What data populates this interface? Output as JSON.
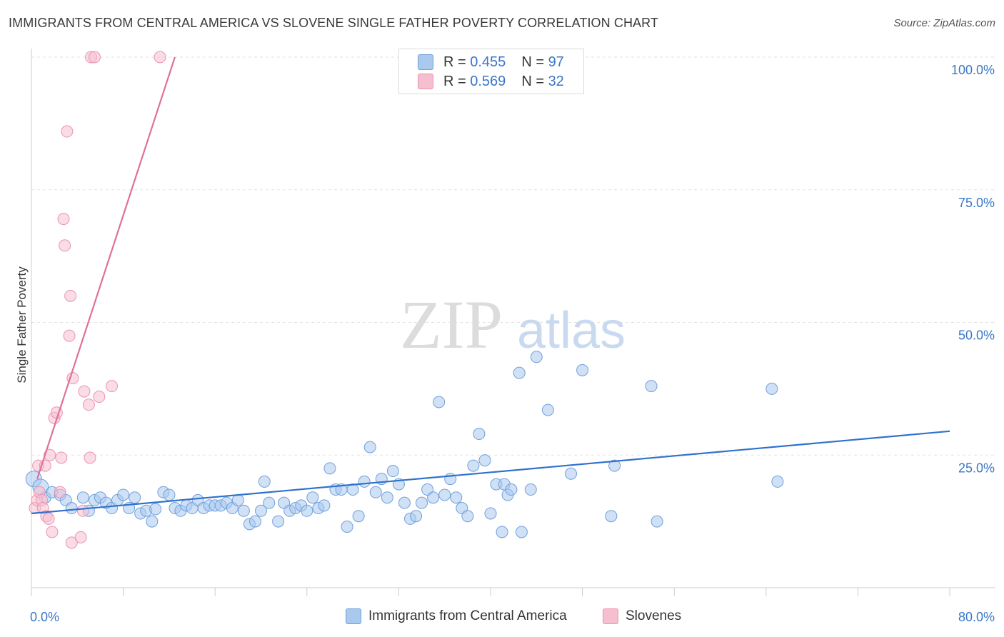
{
  "title": "IMMIGRANTS FROM CENTRAL AMERICA VS SLOVENE SINGLE FATHER POVERTY CORRELATION CHART",
  "source": "Source: ZipAtlas.com",
  "watermark": {
    "zip": "ZIP",
    "atlas": "atlas"
  },
  "legend_stats": [
    {
      "r_label": "R = ",
      "r_value": "0.455",
      "n_label": "N = ",
      "n_value": "97"
    },
    {
      "r_label": "R = ",
      "r_value": "0.569",
      "n_label": "N = ",
      "n_value": "32"
    }
  ],
  "colors": {
    "blue_fill": "#a9c9ef",
    "blue_stroke": "#6fa0dc",
    "blue_line": "#2f72cc",
    "pink_fill": "#f6bfd0",
    "pink_stroke": "#ec92b0",
    "pink_line": "#e0709a",
    "tick_text": "#3a77c7",
    "grid": "#e2e2e2"
  },
  "chart_data": {
    "type": "scatter",
    "title": "IMMIGRANTS FROM CENTRAL AMERICA VS SLOVENE SINGLE FATHER POVERTY CORRELATION CHART",
    "xlabel": "",
    "ylabel": "Single Father Poverty",
    "xlim": [
      0,
      80
    ],
    "ylim": [
      0,
      100
    ],
    "x_tick_labels": [
      {
        "value": 0,
        "label": "0.0%"
      },
      {
        "value": 80,
        "label": "80.0%"
      }
    ],
    "y_tick_labels": [
      {
        "value": 100,
        "label": "100.0%"
      },
      {
        "value": 75,
        "label": "75.0%"
      },
      {
        "value": 50,
        "label": "50.0%"
      },
      {
        "value": 25,
        "label": "25.0%"
      }
    ],
    "x_minor_ticks": [
      0,
      8,
      16,
      24,
      32,
      40,
      48,
      56,
      64,
      72,
      80
    ],
    "series": [
      {
        "name": "Immigrants from Central America",
        "color_key": "blue",
        "trend": {
          "x0": 0,
          "y0": 14.0,
          "x1": 80,
          "y1": 29.5
        },
        "points": [
          [
            0.2,
            20.5
          ],
          [
            0.8,
            19.0
          ],
          [
            1.2,
            17.0
          ],
          [
            1.8,
            18.0
          ],
          [
            2.5,
            17.5
          ],
          [
            3.0,
            16.5
          ],
          [
            3.5,
            15.0
          ],
          [
            4.5,
            17.0
          ],
          [
            5.0,
            14.5
          ],
          [
            5.5,
            16.5
          ],
          [
            6.0,
            17.0
          ],
          [
            6.5,
            16.0
          ],
          [
            7.0,
            15.0
          ],
          [
            7.5,
            16.5
          ],
          [
            8.0,
            17.5
          ],
          [
            8.5,
            15.0
          ],
          [
            9.0,
            17.0
          ],
          [
            9.5,
            14.0
          ],
          [
            10.0,
            14.5
          ],
          [
            10.5,
            12.5
          ],
          [
            10.8,
            14.8
          ],
          [
            11.5,
            18.0
          ],
          [
            12.0,
            17.5
          ],
          [
            12.5,
            15.0
          ],
          [
            13.0,
            14.5
          ],
          [
            13.5,
            15.5
          ],
          [
            14.0,
            15.0
          ],
          [
            14.5,
            16.5
          ],
          [
            15.0,
            15.0
          ],
          [
            15.5,
            15.5
          ],
          [
            16.0,
            15.5
          ],
          [
            16.5,
            15.5
          ],
          [
            17.0,
            16.0
          ],
          [
            17.5,
            15.0
          ],
          [
            18.0,
            16.5
          ],
          [
            18.5,
            14.5
          ],
          [
            19.0,
            12.0
          ],
          [
            19.5,
            12.5
          ],
          [
            20.0,
            14.5
          ],
          [
            20.3,
            20.0
          ],
          [
            20.7,
            16.0
          ],
          [
            21.5,
            12.5
          ],
          [
            22.0,
            16.0
          ],
          [
            22.5,
            14.5
          ],
          [
            23.0,
            15.0
          ],
          [
            23.5,
            15.5
          ],
          [
            24.0,
            14.5
          ],
          [
            24.5,
            17.0
          ],
          [
            25.0,
            15.0
          ],
          [
            25.5,
            15.5
          ],
          [
            26.0,
            22.5
          ],
          [
            26.5,
            18.5
          ],
          [
            27.0,
            18.5
          ],
          [
            27.5,
            11.5
          ],
          [
            28.0,
            18.5
          ],
          [
            28.5,
            13.5
          ],
          [
            29.0,
            20.0
          ],
          [
            29.5,
            26.5
          ],
          [
            30.0,
            18.0
          ],
          [
            30.5,
            20.5
          ],
          [
            31.0,
            17.0
          ],
          [
            31.5,
            22.0
          ],
          [
            32.0,
            19.5
          ],
          [
            32.5,
            16.0
          ],
          [
            33.0,
            13.0
          ],
          [
            33.5,
            13.5
          ],
          [
            34.0,
            16.0
          ],
          [
            34.5,
            18.5
          ],
          [
            35.0,
            17.0
          ],
          [
            35.5,
            35.0
          ],
          [
            36.0,
            17.5
          ],
          [
            36.5,
            20.5
          ],
          [
            37.0,
            17.0
          ],
          [
            37.5,
            15.0
          ],
          [
            38.0,
            13.5
          ],
          [
            38.5,
            23.0
          ],
          [
            39.0,
            29.0
          ],
          [
            39.5,
            24.0
          ],
          [
            40.0,
            14.0
          ],
          [
            40.5,
            19.5
          ],
          [
            41.0,
            10.5
          ],
          [
            41.2,
            19.5
          ],
          [
            41.5,
            17.5
          ],
          [
            41.8,
            18.5
          ],
          [
            42.5,
            40.5
          ],
          [
            42.7,
            10.5
          ],
          [
            43.5,
            18.5
          ],
          [
            44.0,
            43.5
          ],
          [
            45.0,
            33.5
          ],
          [
            47.0,
            21.5
          ],
          [
            48.0,
            41.0
          ],
          [
            50.5,
            13.5
          ],
          [
            50.8,
            23.0
          ],
          [
            54.0,
            38.0
          ],
          [
            54.5,
            12.5
          ],
          [
            64.5,
            37.5
          ],
          [
            65.0,
            20.0
          ]
        ]
      },
      {
        "name": "Slovenes",
        "color_key": "pink",
        "trend": {
          "x0": 0.5,
          "y0": 20.5,
          "x1": 12.5,
          "y1": 100
        },
        "points": [
          [
            0.3,
            15.0
          ],
          [
            0.5,
            16.5
          ],
          [
            0.6,
            23.0
          ],
          [
            0.7,
            18.0
          ],
          [
            0.9,
            16.5
          ],
          [
            1.0,
            15.0
          ],
          [
            1.2,
            23.0
          ],
          [
            1.3,
            13.5
          ],
          [
            1.5,
            13.0
          ],
          [
            1.6,
            25.0
          ],
          [
            1.8,
            10.5
          ],
          [
            2.0,
            32.0
          ],
          [
            2.2,
            33.0
          ],
          [
            2.5,
            18.0
          ],
          [
            2.6,
            24.5
          ],
          [
            2.8,
            69.5
          ],
          [
            2.9,
            64.5
          ],
          [
            3.1,
            86.0
          ],
          [
            3.3,
            47.5
          ],
          [
            3.4,
            55.0
          ],
          [
            3.5,
            8.5
          ],
          [
            3.6,
            39.5
          ],
          [
            4.3,
            9.5
          ],
          [
            4.5,
            14.5
          ],
          [
            4.6,
            37.0
          ],
          [
            5.0,
            34.5
          ],
          [
            5.1,
            24.5
          ],
          [
            5.2,
            100
          ],
          [
            5.5,
            100
          ],
          [
            5.9,
            36.0
          ],
          [
            7.0,
            38.0
          ],
          [
            11.2,
            100
          ]
        ]
      }
    ]
  }
}
